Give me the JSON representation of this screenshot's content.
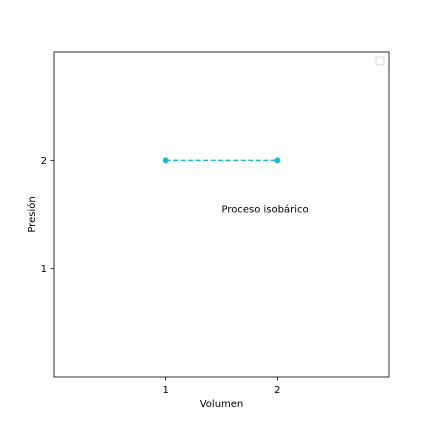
{
  "chart_data": {
    "type": "line",
    "xlabel": "Volumen",
    "ylabel": "Presión",
    "xlim": [
      0,
      3
    ],
    "ylim": [
      0,
      3
    ],
    "xticks": [
      1,
      2
    ],
    "yticks": [
      1,
      2
    ],
    "grid": false,
    "legend": {
      "placement": "top-right",
      "entries": []
    },
    "series": [
      {
        "x": [
          1,
          2
        ],
        "y": [
          2,
          2
        ],
        "color": "#17becf",
        "line_style": "dashed",
        "marker": "circle"
      }
    ],
    "annotations": [
      {
        "text": "Proceso isobárico",
        "x": 1.5,
        "y": 1.55
      }
    ]
  }
}
